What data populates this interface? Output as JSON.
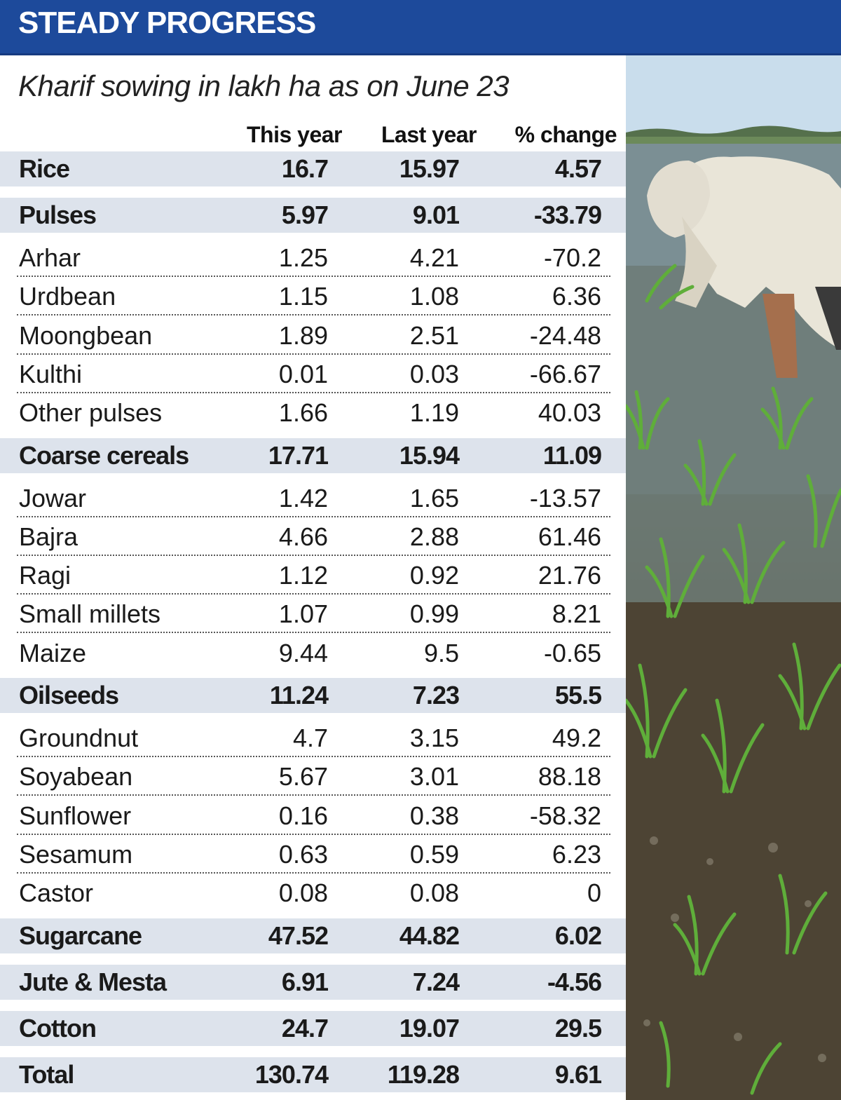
{
  "header": {
    "title": "STEADY PROGRESS"
  },
  "subtitle": "Kharif sowing in lakh ha as on June 23",
  "columns": {
    "this_year": "This year",
    "last_year": "Last year",
    "change": "% change"
  },
  "rows": [
    {
      "label": "Rice",
      "this_year": "16.7",
      "last_year": "15.97",
      "change": "4.57",
      "group": true
    },
    {
      "label": "Pulses",
      "this_year": "5.97",
      "last_year": "9.01",
      "change": "-33.79",
      "group": true
    },
    {
      "label": "Arhar",
      "this_year": "1.25",
      "last_year": "4.21",
      "change": "-70.2"
    },
    {
      "label": "Urdbean",
      "this_year": "1.15",
      "last_year": "1.08",
      "change": "6.36"
    },
    {
      "label": "Moongbean",
      "this_year": "1.89",
      "last_year": "2.51",
      "change": "-24.48"
    },
    {
      "label": "Kulthi",
      "this_year": "0.01",
      "last_year": "0.03",
      "change": "-66.67"
    },
    {
      "label": "Other pulses",
      "this_year": "1.66",
      "last_year": "1.19",
      "change": "40.03"
    },
    {
      "label": "Coarse cereals",
      "this_year": "17.71",
      "last_year": "15.94",
      "change": "11.09",
      "group": true
    },
    {
      "label": "Jowar",
      "this_year": "1.42",
      "last_year": "1.65",
      "change": "-13.57"
    },
    {
      "label": "Bajra",
      "this_year": "4.66",
      "last_year": "2.88",
      "change": "61.46"
    },
    {
      "label": "Ragi",
      "this_year": "1.12",
      "last_year": "0.92",
      "change": "21.76"
    },
    {
      "label": "Small millets",
      "this_year": "1.07",
      "last_year": "0.99",
      "change": "8.21"
    },
    {
      "label": "Maize",
      "this_year": "9.44",
      "last_year": "9.5",
      "change": "-0.65"
    },
    {
      "label": "Oilseeds",
      "this_year": "11.24",
      "last_year": "7.23",
      "change": "55.5",
      "group": true
    },
    {
      "label": "Groundnut",
      "this_year": "4.7",
      "last_year": "3.15",
      "change": "49.2"
    },
    {
      "label": "Soyabean",
      "this_year": "5.67",
      "last_year": "3.01",
      "change": "88.18"
    },
    {
      "label": "Sunflower",
      "this_year": "0.16",
      "last_year": "0.38",
      "change": "-58.32"
    },
    {
      "label": "Sesamum",
      "this_year": "0.63",
      "last_year": "0.59",
      "change": "6.23"
    },
    {
      "label": "Castor",
      "this_year": "0.08",
      "last_year": "0.08",
      "change": "0"
    },
    {
      "label": "Sugarcane",
      "this_year": "47.52",
      "last_year": "44.82",
      "change": "6.02",
      "group": true
    },
    {
      "label": "Jute & Mesta",
      "this_year": "6.91",
      "last_year": "7.24",
      "change": "-4.56",
      "group": true
    },
    {
      "label": "Cotton",
      "this_year": "24.7",
      "last_year": "19.07",
      "change": "29.5",
      "group": true
    },
    {
      "label": "Total",
      "this_year": "130.74",
      "last_year": "119.28",
      "change": "9.61",
      "group": true
    }
  ],
  "colors": {
    "header_bg": "#1d4a9b",
    "group_row_bg": "#dde3ec"
  },
  "photo": {
    "icon": "rice-paddy-farmer-photo"
  }
}
